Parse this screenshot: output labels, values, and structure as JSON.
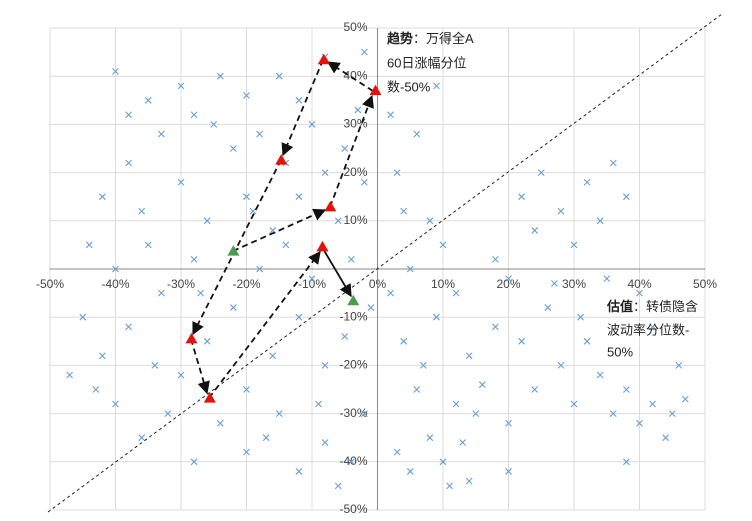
{
  "chart_data": {
    "type": "scatter",
    "xlim": [
      -50,
      50
    ],
    "ylim": [
      -50,
      50
    ],
    "xticks": [
      {
        "value": -50,
        "label": "-50%"
      },
      {
        "value": -40,
        "label": "-40%"
      },
      {
        "value": -30,
        "label": "-30%"
      },
      {
        "value": -20,
        "label": "-20%"
      },
      {
        "value": -10,
        "label": "-10%"
      },
      {
        "value": 0,
        "label": "0%"
      },
      {
        "value": 10,
        "label": "10%"
      },
      {
        "value": 20,
        "label": "20%"
      },
      {
        "value": 30,
        "label": "30%"
      },
      {
        "value": 40,
        "label": "40%"
      },
      {
        "value": 50,
        "label": "50%"
      }
    ],
    "yticks": [
      {
        "value": 50,
        "label": "50%"
      },
      {
        "value": 40,
        "label": "40%"
      },
      {
        "value": 30,
        "label": "30%"
      },
      {
        "value": 20,
        "label": "20%"
      },
      {
        "value": 10,
        "label": "10%"
      },
      {
        "value": -10,
        "label": "-10%"
      },
      {
        "value": -20,
        "label": "-20%"
      },
      {
        "value": -30,
        "label": "-30%"
      },
      {
        "value": -40,
        "label": "-40%"
      },
      {
        "value": -50,
        "label": "-50%"
      }
    ],
    "grid": true,
    "series": [
      {
        "marker": "x",
        "color": "#6a9fd0",
        "x": [
          -40,
          -35,
          -30,
          -28,
          -25,
          -20,
          -18,
          -15,
          -12,
          -10,
          -5,
          -3,
          -8,
          -22,
          -33,
          -38,
          -42,
          -36,
          -30,
          -26,
          -20,
          -16,
          -12,
          -6,
          -2,
          -44,
          -40,
          -35,
          -28,
          -18,
          -14,
          -10,
          -4,
          -45,
          -42,
          -38,
          -33,
          -30,
          -26,
          -22,
          -20,
          -16,
          -12,
          -8,
          -5,
          -2,
          -40,
          -36,
          -32,
          -28,
          -24,
          -20,
          -15,
          -12,
          -8,
          -4,
          -34,
          -43,
          -1,
          -24,
          -8,
          -2,
          -14,
          -27,
          -9,
          -17,
          -38,
          -47,
          -6,
          -19,
          2,
          4,
          6,
          8,
          10,
          3,
          7,
          9,
          5,
          10,
          12,
          14,
          15,
          12,
          8,
          3,
          6,
          2,
          9,
          5,
          11,
          13,
          16,
          18,
          20,
          22,
          24,
          20,
          26,
          28,
          30,
          32,
          34,
          36,
          38,
          40,
          42,
          45,
          47,
          44,
          22,
          25,
          28,
          30,
          32,
          34,
          36,
          38,
          40,
          42,
          35,
          24,
          27,
          18,
          46,
          31,
          38,
          20,
          14,
          4
        ],
        "y": [
          41,
          35,
          38,
          32,
          30,
          36,
          28,
          40,
          35,
          30,
          25,
          33,
          20,
          25,
          28,
          22,
          15,
          12,
          18,
          10,
          15,
          8,
          15,
          10,
          18,
          5,
          0,
          5,
          2,
          0,
          5,
          -2,
          2,
          -10,
          -18,
          -12,
          -5,
          -22,
          -15,
          -8,
          -25,
          -18,
          -10,
          -20,
          -14,
          -30,
          -28,
          -35,
          -30,
          -40,
          -32,
          -38,
          -30,
          -42,
          -36,
          -40,
          -20,
          -25,
          -8,
          40,
          44,
          45,
          22,
          -5,
          -28,
          -35,
          32,
          -22,
          -45,
          12,
          -5,
          -15,
          -25,
          -35,
          -40,
          -38,
          -20,
          -10,
          0,
          5,
          -5,
          -18,
          -30,
          -28,
          10,
          20,
          28,
          32,
          38,
          -42,
          -45,
          -36,
          -24,
          -12,
          -2,
          -15,
          -25,
          -32,
          -8,
          -20,
          -28,
          -15,
          -22,
          -30,
          -25,
          -32,
          -28,
          -30,
          -27,
          -35,
          15,
          20,
          12,
          5,
          18,
          10,
          22,
          15,
          -5,
          -12,
          -2,
          8,
          -3,
          2,
          -20,
          -10,
          -40,
          -42,
          -44,
          12
        ]
      },
      {
        "marker": "triangle",
        "color": "#e3120b",
        "x": [
          -8.2,
          -0.3,
          -14.7,
          -7.2,
          -8.4,
          -28.4,
          -25.6
        ],
        "y": [
          43.4,
          37,
          22.6,
          12.9,
          4.6,
          -14.5,
          -26.8
        ]
      },
      {
        "marker": "triangle",
        "color": "#4e9a4e",
        "x": [
          -22,
          -3.7
        ],
        "y": [
          3.7,
          -6.6
        ]
      }
    ],
    "annotations": [
      {
        "label": "趋势",
        "lines": [
          "：万得全A",
          "60日涨幅分位",
          "数-50%"
        ]
      },
      {
        "label": "估值",
        "lines": [
          "：转债隐含",
          "波动率分位数-",
          "50%"
        ]
      }
    ]
  }
}
